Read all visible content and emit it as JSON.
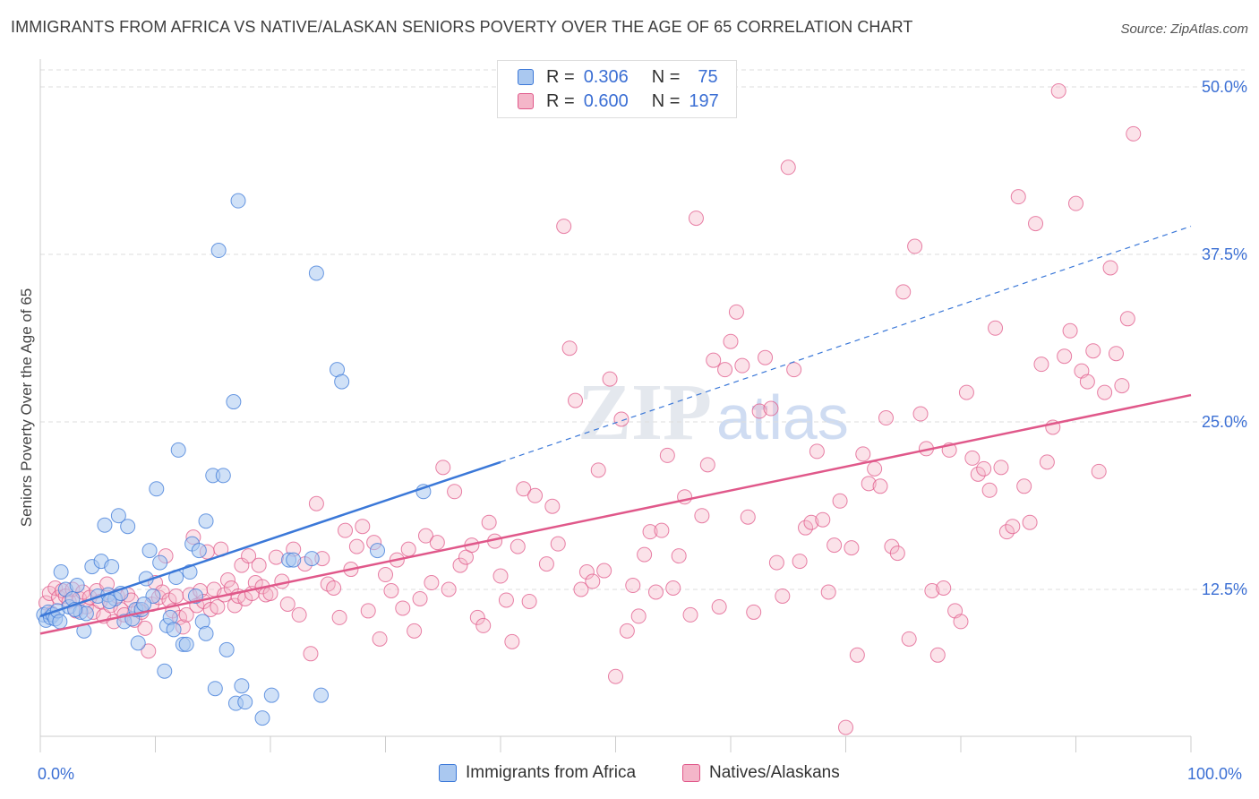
{
  "title": "IMMIGRANTS FROM AFRICA VS NATIVE/ALASKAN SENIORS POVERTY OVER THE AGE OF 65 CORRELATION CHART",
  "source": "Source: ZipAtlas.com",
  "watermark": "ZIPatlas",
  "colors": {
    "blue": "#3b78d8",
    "blue_fill": "#aac8f0",
    "pink": "#e0588a",
    "pink_fill": "#f4b6c9",
    "axis_text": "#3b6fd4"
  },
  "legend_top": {
    "row1": {
      "r_label": "R =",
      "r_value": "0.306",
      "n_label": "N =",
      "n_value": "75"
    },
    "row2": {
      "r_label": "R =",
      "r_value": "0.600",
      "n_label": "N =",
      "n_value": "197"
    }
  },
  "legend_bottom": {
    "series1": "Immigrants from Africa",
    "series2": "Natives/Alaskans"
  },
  "x_axis": {
    "min_label": "0.0%",
    "max_label": "100.0%"
  },
  "chart_data": {
    "type": "scatter",
    "title": "IMMIGRANTS FROM AFRICA VS NATIVE/ALASKAN SENIORS POVERTY OVER THE AGE OF 65 CORRELATION CHART",
    "xlabel": "",
    "ylabel": "Seniors Poverty Over the Age of 65",
    "xlim": [
      0,
      100
    ],
    "ylim": [
      0,
      52
    ],
    "y_ticks": [
      12.5,
      25.0,
      37.5,
      50.0
    ],
    "y_tick_labels": [
      "12.5%",
      "25.0%",
      "37.5%",
      "50.0%"
    ],
    "x_tick_labels": [
      "0.0%",
      "100.0%"
    ],
    "grid": true,
    "legend": "top-center",
    "series": [
      {
        "name": "Immigrants from Africa",
        "color": "#3b78d8",
        "r": 0.306,
        "n": 75,
        "trend": {
          "x0": 0,
          "y0": 10.5,
          "x1": 40,
          "y1": 22.0,
          "dashed_to": 100,
          "dashed_y": 39.6
        },
        "points": [
          [
            0.3,
            10.6
          ],
          [
            0.5,
            10.2
          ],
          [
            0.7,
            10.8
          ],
          [
            0.9,
            10.4
          ],
          [
            1.1,
            10.6
          ],
          [
            1.3,
            10.3
          ],
          [
            1.5,
            10.9
          ],
          [
            1.7,
            10.1
          ],
          [
            1.8,
            13.8
          ],
          [
            2.2,
            12.5
          ],
          [
            2.5,
            11.2
          ],
          [
            2.8,
            11.8
          ],
          [
            3.2,
            12.8
          ],
          [
            3.5,
            10.8
          ],
          [
            3.8,
            9.4
          ],
          [
            4.0,
            10.7
          ],
          [
            4.5,
            14.2
          ],
          [
            5.0,
            12.0
          ],
          [
            5.3,
            14.6
          ],
          [
            5.6,
            17.3
          ],
          [
            5.9,
            12.1
          ],
          [
            6.2,
            14.2
          ],
          [
            6.5,
            11.8
          ],
          [
            6.8,
            18.0
          ],
          [
            7.0,
            12.2
          ],
          [
            7.3,
            10.1
          ],
          [
            7.6,
            17.2
          ],
          [
            8.0,
            10.3
          ],
          [
            8.3,
            11.0
          ],
          [
            8.5,
            8.5
          ],
          [
            8.8,
            11.0
          ],
          [
            9.2,
            13.3
          ],
          [
            9.5,
            15.4
          ],
          [
            9.8,
            12.0
          ],
          [
            10.1,
            20.0
          ],
          [
            10.4,
            14.5
          ],
          [
            10.8,
            6.4
          ],
          [
            11.0,
            9.8
          ],
          [
            11.3,
            10.4
          ],
          [
            11.6,
            9.5
          ],
          [
            12.0,
            22.9
          ],
          [
            12.4,
            8.4
          ],
          [
            12.7,
            8.4
          ],
          [
            13.0,
            13.8
          ],
          [
            13.2,
            15.9
          ],
          [
            13.5,
            12.0
          ],
          [
            13.8,
            15.4
          ],
          [
            14.1,
            10.1
          ],
          [
            14.4,
            17.6
          ],
          [
            14.4,
            9.2
          ],
          [
            15.0,
            21.0
          ],
          [
            15.2,
            5.1
          ],
          [
            15.5,
            37.8
          ],
          [
            15.9,
            21.0
          ],
          [
            16.2,
            8.0
          ],
          [
            16.8,
            26.5
          ],
          [
            17.2,
            41.5
          ],
          [
            17.5,
            5.3
          ],
          [
            17.0,
            4.0
          ],
          [
            17.8,
            4.1
          ],
          [
            19.3,
            2.9
          ],
          [
            20.1,
            4.6
          ],
          [
            21.6,
            14.7
          ],
          [
            22.0,
            14.7
          ],
          [
            23.6,
            14.8
          ],
          [
            24.0,
            36.1
          ],
          [
            24.4,
            4.6
          ],
          [
            25.8,
            28.9
          ],
          [
            26.2,
            28.0
          ],
          [
            29.3,
            15.4
          ],
          [
            33.3,
            19.8
          ],
          [
            11.8,
            13.4
          ],
          [
            3.0,
            11.0
          ],
          [
            6.0,
            11.6
          ],
          [
            9.0,
            11.4
          ]
        ]
      },
      {
        "name": "Natives/Alaskans",
        "color": "#e0588a",
        "r": 0.6,
        "n": 197,
        "trend": {
          "x0": 0,
          "y0": 9.2,
          "x1": 100,
          "y1": 27.0
        },
        "points": [
          [
            0.5,
            11.5
          ],
          [
            0.8,
            12.2
          ],
          [
            1.0,
            10.7
          ],
          [
            1.3,
            12.6
          ],
          [
            1.6,
            11.9
          ],
          [
            1.9,
            12.4
          ],
          [
            2.2,
            12.0
          ],
          [
            2.5,
            11.6
          ],
          [
            2.8,
            12.5
          ],
          [
            3.1,
            10.9
          ],
          [
            3.4,
            11.8
          ],
          [
            3.7,
            12.3
          ],
          [
            4.0,
            11.2
          ],
          [
            4.3,
            11.9
          ],
          [
            4.6,
            10.8
          ],
          [
            4.9,
            12.4
          ],
          [
            5.2,
            11.6
          ],
          [
            5.5,
            10.5
          ],
          [
            5.8,
            12.9
          ],
          [
            6.1,
            11.3
          ],
          [
            6.4,
            10.1
          ],
          [
            6.7,
            12.0
          ],
          [
            7.0,
            11.0
          ],
          [
            7.3,
            10.6
          ],
          [
            7.6,
            12.1
          ],
          [
            7.9,
            11.7
          ],
          [
            8.2,
            10.2
          ],
          [
            8.5,
            11.0
          ],
          [
            8.8,
            10.8
          ],
          [
            9.1,
            9.6
          ],
          [
            9.4,
            7.9
          ],
          [
            9.7,
            11.4
          ],
          [
            10.0,
            13.0
          ],
          [
            10.3,
            11.9
          ],
          [
            10.6,
            12.3
          ],
          [
            10.9,
            15.0
          ],
          [
            11.2,
            11.7
          ],
          [
            11.5,
            10.9
          ],
          [
            11.8,
            12.0
          ],
          [
            12.1,
            10.4
          ],
          [
            12.4,
            9.7
          ],
          [
            12.7,
            10.6
          ],
          [
            13.0,
            12.1
          ],
          [
            13.3,
            16.4
          ],
          [
            13.6,
            11.3
          ],
          [
            13.9,
            12.4
          ],
          [
            14.2,
            11.6
          ],
          [
            14.5,
            15.3
          ],
          [
            14.8,
            11.0
          ],
          [
            15.1,
            12.5
          ],
          [
            15.4,
            11.2
          ],
          [
            15.7,
            15.5
          ],
          [
            16.0,
            12.1
          ],
          [
            16.3,
            13.2
          ],
          [
            16.6,
            12.6
          ],
          [
            16.9,
            11.3
          ],
          [
            17.2,
            12.0
          ],
          [
            17.5,
            14.3
          ],
          [
            17.8,
            11.8
          ],
          [
            18.1,
            15.0
          ],
          [
            18.4,
            12.2
          ],
          [
            18.7,
            13.0
          ],
          [
            19.0,
            14.3
          ],
          [
            19.3,
            12.7
          ],
          [
            19.6,
            12.1
          ],
          [
            20.0,
            12.2
          ],
          [
            20.5,
            14.9
          ],
          [
            21.0,
            13.1
          ],
          [
            21.5,
            11.4
          ],
          [
            22.0,
            15.5
          ],
          [
            22.5,
            10.6
          ],
          [
            23.0,
            14.4
          ],
          [
            23.5,
            7.7
          ],
          [
            24.0,
            18.9
          ],
          [
            24.5,
            14.8
          ],
          [
            25.0,
            12.9
          ],
          [
            25.5,
            12.6
          ],
          [
            26.0,
            10.4
          ],
          [
            26.5,
            16.9
          ],
          [
            27.0,
            14.0
          ],
          [
            27.5,
            15.7
          ],
          [
            28.0,
            17.2
          ],
          [
            28.5,
            10.9
          ],
          [
            29.0,
            16.0
          ],
          [
            29.5,
            8.8
          ],
          [
            30.0,
            13.6
          ],
          [
            30.5,
            12.4
          ],
          [
            31.0,
            14.7
          ],
          [
            31.5,
            11.1
          ],
          [
            32.0,
            15.5
          ],
          [
            32.5,
            9.4
          ],
          [
            33.0,
            11.8
          ],
          [
            33.5,
            16.5
          ],
          [
            34.0,
            13.0
          ],
          [
            34.5,
            16.0
          ],
          [
            35.0,
            21.6
          ],
          [
            35.5,
            12.5
          ],
          [
            36.0,
            19.8
          ],
          [
            36.5,
            14.3
          ],
          [
            37.0,
            14.9
          ],
          [
            37.5,
            15.8
          ],
          [
            38.0,
            10.4
          ],
          [
            38.5,
            9.8
          ],
          [
            39.0,
            17.5
          ],
          [
            39.5,
            16.1
          ],
          [
            40.0,
            13.5
          ],
          [
            40.5,
            11.7
          ],
          [
            41.0,
            8.6
          ],
          [
            41.5,
            15.7
          ],
          [
            42.0,
            20.0
          ],
          [
            42.5,
            11.6
          ],
          [
            43.0,
            19.5
          ],
          [
            44.0,
            14.4
          ],
          [
            44.5,
            18.7
          ],
          [
            45.0,
            15.9
          ],
          [
            45.5,
            39.6
          ],
          [
            46.0,
            30.5
          ],
          [
            46.5,
            26.6
          ],
          [
            47.0,
            12.5
          ],
          [
            47.5,
            13.8
          ],
          [
            48.0,
            13.1
          ],
          [
            48.5,
            21.4
          ],
          [
            49.0,
            13.9
          ],
          [
            49.5,
            28.2
          ],
          [
            50.0,
            6.0
          ],
          [
            50.5,
            25.2
          ],
          [
            51.0,
            9.4
          ],
          [
            51.5,
            12.8
          ],
          [
            52.0,
            10.5
          ],
          [
            52.5,
            15.1
          ],
          [
            53.0,
            16.8
          ],
          [
            53.5,
            12.3
          ],
          [
            54.0,
            16.9
          ],
          [
            54.5,
            22.5
          ],
          [
            55.0,
            12.6
          ],
          [
            55.5,
            15.0
          ],
          [
            56.0,
            19.4
          ],
          [
            56.5,
            10.6
          ],
          [
            57.0,
            40.2
          ],
          [
            57.5,
            18.0
          ],
          [
            58.0,
            21.8
          ],
          [
            58.5,
            29.6
          ],
          [
            59.0,
            11.2
          ],
          [
            59.5,
            28.9
          ],
          [
            60.0,
            31.0
          ],
          [
            60.5,
            33.2
          ],
          [
            61.0,
            29.2
          ],
          [
            61.5,
            17.9
          ],
          [
            62.0,
            10.8
          ],
          [
            62.5,
            25.8
          ],
          [
            63.0,
            29.8
          ],
          [
            63.5,
            26.0
          ],
          [
            64.0,
            14.5
          ],
          [
            64.5,
            12.0
          ],
          [
            65.0,
            44.0
          ],
          [
            65.5,
            28.9
          ],
          [
            66.0,
            14.6
          ],
          [
            66.5,
            17.1
          ],
          [
            67.0,
            17.5
          ],
          [
            67.5,
            22.8
          ],
          [
            68.0,
            17.7
          ],
          [
            68.5,
            12.3
          ],
          [
            69.0,
            15.8
          ],
          [
            69.5,
            19.1
          ],
          [
            70.0,
            2.2
          ],
          [
            70.5,
            15.6
          ],
          [
            71.0,
            7.6
          ],
          [
            71.5,
            22.6
          ],
          [
            72.0,
            20.4
          ],
          [
            72.5,
            21.5
          ],
          [
            73.0,
            20.2
          ],
          [
            73.5,
            25.3
          ],
          [
            74.0,
            15.7
          ],
          [
            74.5,
            15.2
          ],
          [
            75.0,
            34.7
          ],
          [
            75.5,
            8.8
          ],
          [
            76.0,
            38.1
          ],
          [
            76.5,
            25.6
          ],
          [
            77.0,
            23.0
          ],
          [
            77.5,
            12.4
          ],
          [
            78.0,
            7.6
          ],
          [
            78.5,
            12.6
          ],
          [
            79.0,
            22.9
          ],
          [
            79.5,
            10.9
          ],
          [
            80.0,
            10.1
          ],
          [
            80.5,
            27.2
          ],
          [
            81.0,
            22.3
          ],
          [
            81.5,
            21.1
          ],
          [
            82.0,
            21.5
          ],
          [
            82.5,
            19.9
          ],
          [
            83.0,
            32.0
          ],
          [
            83.5,
            21.6
          ],
          [
            84.0,
            16.8
          ],
          [
            84.5,
            17.2
          ],
          [
            85.0,
            41.8
          ],
          [
            85.5,
            20.2
          ],
          [
            86.0,
            17.5
          ],
          [
            86.5,
            39.8
          ],
          [
            87.0,
            29.3
          ],
          [
            87.5,
            22.0
          ],
          [
            88.0,
            24.6
          ],
          [
            88.5,
            49.7
          ],
          [
            89.0,
            29.9
          ],
          [
            89.5,
            31.8
          ],
          [
            90.0,
            41.3
          ],
          [
            90.5,
            28.8
          ],
          [
            91.0,
            28.0
          ],
          [
            91.5,
            30.3
          ],
          [
            92.0,
            21.3
          ],
          [
            92.5,
            27.2
          ],
          [
            93.0,
            36.5
          ],
          [
            93.5,
            30.1
          ],
          [
            94.0,
            27.7
          ],
          [
            94.5,
            32.7
          ],
          [
            95.0,
            46.5
          ]
        ]
      }
    ]
  }
}
